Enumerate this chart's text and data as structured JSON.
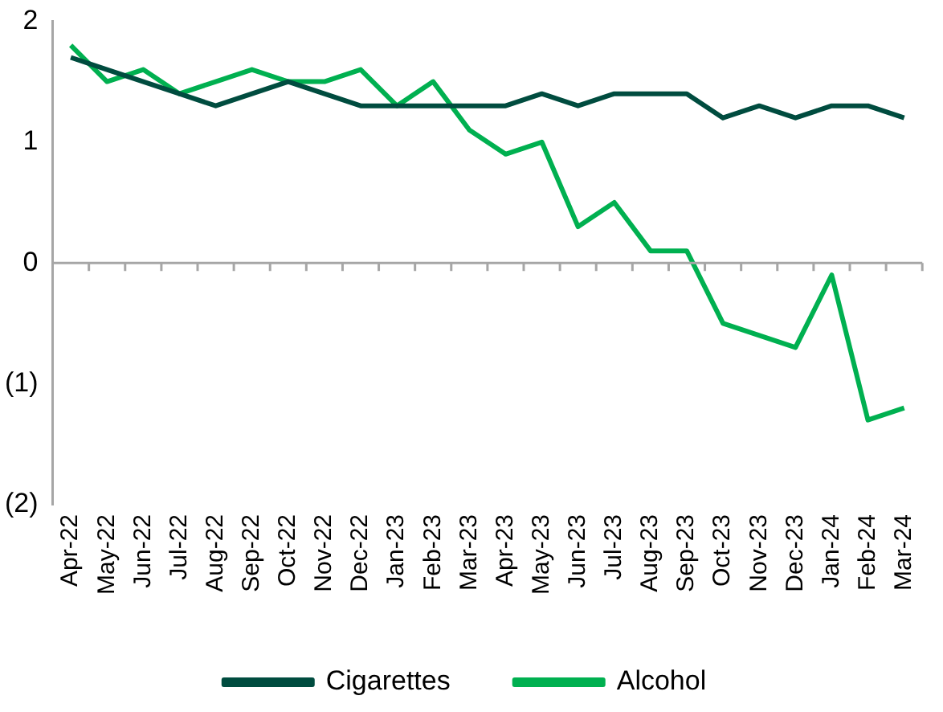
{
  "chart_data": {
    "type": "line",
    "categories": [
      "Apr-22",
      "May-22",
      "Jun-22",
      "Jul-22",
      "Aug-22",
      "Sep-22",
      "Oct-22",
      "Nov-22",
      "Dec-22",
      "Jan-23",
      "Feb-23",
      "Mar-23",
      "Apr-23",
      "May-23",
      "Jun-23",
      "Jul-23",
      "Aug-23",
      "Sep-23",
      "Oct-23",
      "Nov-23",
      "Dec-23",
      "Jan-24",
      "Feb-24",
      "Mar-24"
    ],
    "series": [
      {
        "name": "Cigarettes",
        "color": "#004c3f",
        "values": [
          1.7,
          1.6,
          1.5,
          1.4,
          1.3,
          1.4,
          1.5,
          1.4,
          1.3,
          1.3,
          1.3,
          1.3,
          1.3,
          1.4,
          1.3,
          1.4,
          1.4,
          1.4,
          1.2,
          1.3,
          1.2,
          1.3,
          1.3,
          1.2
        ]
      },
      {
        "name": "Alcohol",
        "color": "#00b050",
        "values": [
          1.8,
          1.5,
          1.6,
          1.4,
          1.5,
          1.6,
          1.5,
          1.5,
          1.6,
          1.3,
          1.5,
          1.1,
          0.9,
          1.0,
          0.3,
          0.5,
          0.1,
          0.1,
          -0.5,
          -0.6,
          -0.7,
          -0.1,
          -1.3,
          -1.2
        ]
      }
    ],
    "ylim": [
      -2,
      2
    ],
    "yticks": [
      {
        "value": -2,
        "label": "(2)"
      },
      {
        "value": -1,
        "label": "(1)"
      },
      0,
      1,
      2
    ],
    "ref_lines": [
      {
        "axis": "y",
        "value": 0,
        "color": "#a6a6a6"
      }
    ],
    "grid": false,
    "legend": "bottom",
    "marker": "none",
    "line_style": "solid"
  }
}
